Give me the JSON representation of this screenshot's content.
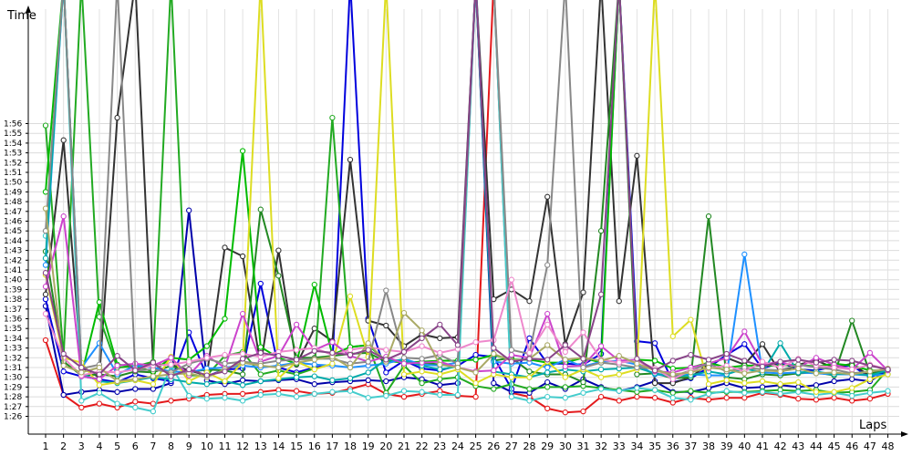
{
  "chart_data": {
    "type": "line",
    "xlabel": "Laps",
    "ylabel": "Time",
    "x": [
      1,
      2,
      3,
      4,
      5,
      6,
      7,
      8,
      9,
      10,
      11,
      12,
      13,
      14,
      15,
      16,
      17,
      18,
      19,
      20,
      21,
      22,
      23,
      24,
      25,
      26,
      27,
      28,
      29,
      30,
      31,
      32,
      33,
      34,
      35,
      36,
      37,
      38,
      39,
      40,
      41,
      42,
      43,
      44,
      45,
      46,
      47,
      48
    ],
    "x_tick_labels": [
      "1",
      "2",
      "3",
      "4",
      "5",
      "6",
      "7",
      "8",
      "9",
      "10",
      "11",
      "12",
      "13",
      "14",
      "15",
      "16",
      "17",
      "18",
      "19",
      "20",
      "21",
      "22",
      "23",
      "24",
      "25",
      "26",
      "27",
      "28",
      "29",
      "30",
      "31",
      "32",
      "33",
      "34",
      "35",
      "36",
      "37",
      "38",
      "39",
      "40",
      "41",
      "42",
      "43",
      "44",
      "45",
      "46",
      "47",
      "48"
    ],
    "y_tick_labels": [
      "1:26",
      "1:27",
      "1:28",
      "1:29",
      "1:30",
      "1:31",
      "1:32",
      "1:33",
      "1:34",
      "1:35",
      "1:36",
      "1:37",
      "1:38",
      "1:39",
      "1:40",
      "1:41",
      "1:42",
      "1:43",
      "1:44",
      "1:45",
      "1:46",
      "1:47",
      "1:48",
      "1:49",
      "1:50",
      "1:51",
      "1:52",
      "1:53",
      "1:54",
      "1:55",
      "1:56"
    ],
    "y_unit": "seconds",
    "ylim": [
      85,
      117
    ],
    "grid": true,
    "legend": "none",
    "series": [
      {
        "color": "#e41a1c",
        "values": [
          93.8,
          88.2,
          86.9,
          87.3,
          86.9,
          87.5,
          87.3,
          87.6,
          87.8,
          88.2,
          88.3,
          88.3,
          88.5,
          88.7,
          88.6,
          88.3,
          88.4,
          88.8,
          89.3,
          88.3,
          88.0,
          88.3,
          88.6,
          88.1,
          88.0,
          117,
          88.4,
          88.0,
          86.8,
          86.4,
          86.5,
          88.0,
          87.6,
          88.0,
          87.9,
          87.4,
          87.9,
          87.7,
          87.9,
          87.9,
          88.4,
          88.2,
          87.8,
          87.7,
          87.9,
          87.6,
          87.8,
          88.3
        ]
      },
      {
        "color": "#0000aa",
        "values": [
          97.3,
          88.2,
          88.5,
          88.7,
          88.5,
          88.8,
          88.8,
          89.4,
          107.1,
          89.7,
          89.3,
          89.7,
          89.6,
          89.7,
          89.8,
          89.3,
          89.5,
          89.6,
          89.7,
          89.6,
          90.0,
          89.8,
          89.2,
          89.4,
          117,
          89.4,
          88.5,
          88.4,
          89.5,
          88.8,
          89.8,
          89.0,
          88.6,
          89.0,
          89.6,
          88.5,
          88.5,
          88.9,
          89.4,
          88.9,
          89.0,
          89.2,
          89.0,
          89.2,
          89.6,
          89.8,
          89.6,
          90.7
        ]
      },
      {
        "color": "#0000dd",
        "values": [
          98.0,
          90.6,
          90.1,
          89.8,
          89.5,
          90.3,
          89.9,
          89.6,
          94.6,
          90.1,
          90.8,
          90.9,
          99.6,
          91.0,
          90.5,
          91.0,
          91.3,
          117,
          96.0,
          90.5,
          91.7,
          90.9,
          90.7,
          91.2,
          92.3,
          92.1,
          88.8,
          94.0,
          91.4,
          91.4,
          91.3,
          92.4,
          117,
          93.7,
          93.5,
          89.5,
          89.9,
          91.0,
          92.3,
          93.4,
          90.9,
          91.5,
          90.8,
          90.7,
          91.1,
          91.2,
          90.0,
          90.7
        ]
      },
      {
        "color": "#333333",
        "values": [
          98.5,
          114.3,
          91.0,
          90.0,
          116.6,
          117,
          91.3,
          91.3,
          90.7,
          90.2,
          103.3,
          102.4,
          91.2,
          103.0,
          91.3,
          95.0,
          93.7,
          112.3,
          95.8,
          95.3,
          93.2,
          94.4,
          94.0,
          94.1,
          117,
          98.0,
          99.0,
          97.8,
          108.5,
          93.4,
          98.7,
          117,
          97.8,
          112.7,
          89.4,
          89.4,
          90.0,
          91.4,
          92.0,
          91.3,
          93.4,
          90.5,
          91.3,
          91.7,
          91.0,
          91.4,
          90.1,
          90.8
        ]
      },
      {
        "color": "#22aa22",
        "values": [
          115.8,
          92.1,
          117,
          96.2,
          91.0,
          91.1,
          91.6,
          117,
          90.2,
          90.2,
          92.2,
          92.6,
          90.3,
          90.7,
          90.3,
          90.9,
          116.6,
          93.1,
          93.3,
          88.4,
          91.2,
          89.4,
          89.8,
          90.0,
          89.1,
          88.8,
          89.3,
          88.8,
          89.0,
          89.0,
          89.1,
          88.9,
          88.7,
          88.5,
          88.7,
          88.4,
          88.6,
          88.4,
          88.5,
          88.5,
          88.6,
          88.7,
          88.6,
          88.7,
          88.4,
          88.5,
          88.7,
          90.8
        ]
      },
      {
        "color": "#228822",
        "values": [
          102.9,
          91.6,
          90.2,
          90.3,
          90.1,
          90.6,
          90.5,
          91.2,
          90.5,
          90.8,
          90.7,
          90.3,
          107.2,
          100.4,
          92.0,
          92.0,
          92.2,
          92.4,
          92.5,
          91.6,
          91.6,
          91.5,
          91.3,
          91.1,
          117,
          91.7,
          92.0,
          90.6,
          90.3,
          90.3,
          89.5,
          105.0,
          117,
          90.3,
          90.4,
          89.9,
          90.0,
          106.5,
          90.0,
          89.8,
          90.3,
          90.2,
          90.4,
          90.5,
          90.2,
          95.8,
          90.4,
          90.7
        ]
      },
      {
        "color": "#00bb00",
        "values": [
          109.0,
          117,
          90.2,
          97.7,
          91.3,
          91.1,
          90.6,
          92.0,
          91.8,
          93.2,
          96.0,
          113.2,
          93.1,
          92.0,
          91.4,
          99.5,
          92.3,
          93.1,
          93.3,
          91.7,
          91.5,
          91.6,
          91.7,
          91.7,
          91.8,
          92.3,
          91.8,
          91.8,
          91.5,
          91.5,
          92.0,
          91.5,
          117,
          91.8,
          91.7,
          90.9,
          91.0,
          91.5,
          91.0,
          91.2,
          91.2,
          91.2,
          91.3,
          91.1,
          91.4,
          91.2,
          90.7,
          90.7
        ]
      },
      {
        "color": "#1e90ff",
        "values": [
          101.5,
          117,
          91.0,
          93.5,
          90.3,
          91.2,
          91.0,
          90.6,
          90.5,
          90.9,
          91.0,
          91.2,
          91.0,
          91.2,
          91.5,
          91.3,
          91.2,
          91.0,
          91.2,
          91.4,
          91.9,
          91.3,
          91.2,
          91.5,
          117,
          91.6,
          91.4,
          91.5,
          91.0,
          91.8,
          91.1,
          91.6,
          91.7,
          91.3,
          90.3,
          90.1,
          90.3,
          90.2,
          90.2,
          102.6,
          90.5,
          90.4,
          90.5,
          90.4,
          90.3,
          90.3,
          90.2,
          90.3
        ]
      },
      {
        "color": "#44cccc",
        "values": [
          104.5,
          117,
          87.6,
          88.4,
          87.3,
          86.9,
          86.5,
          91.2,
          88.1,
          87.8,
          87.9,
          87.6,
          88.2,
          88.3,
          88.0,
          88.3,
          88.5,
          88.6,
          87.9,
          88.1,
          88.6,
          88.5,
          88.2,
          88.2,
          117,
          117,
          88.0,
          87.6,
          88.0,
          87.9,
          88.4,
          88.8,
          88.6,
          88.9,
          88.7,
          87.9,
          87.7,
          88.3,
          88.6,
          88.4,
          88.5,
          88.3,
          88.5,
          88.2,
          88.4,
          88.1,
          88.4,
          88.6
        ]
      },
      {
        "color": "#00aaaa",
        "values": [
          102.2,
          117,
          90.4,
          89.6,
          89.4,
          89.7,
          90.0,
          89.8,
          89.5,
          89.3,
          89.6,
          89.2,
          89.6,
          89.8,
          90.0,
          90.1,
          89.7,
          89.9,
          90.5,
          91.8,
          91.7,
          91.2,
          90.8,
          91.1,
          117,
          90.6,
          90.3,
          90.0,
          90.5,
          90.8,
          90.6,
          90.8,
          90.9,
          91.0,
          90.4,
          90.1,
          90.2,
          90.6,
          90.3,
          90.9,
          90.5,
          93.5,
          90.5,
          90.6,
          90.3,
          90.4,
          90.2,
          90.7
        ]
      },
      {
        "color": "#dddd22",
        "values": [
          100.5,
          92.0,
          91.5,
          89.2,
          89.5,
          89.7,
          89.3,
          92.1,
          89.6,
          90.5,
          89.6,
          91.5,
          117,
          89.9,
          91.6,
          90.8,
          91.4,
          98.3,
          92.1,
          117,
          90.3,
          90.6,
          90.3,
          90.8,
          89.4,
          90.3,
          90.0,
          90.0,
          91.6,
          90.0,
          90.8,
          90.0,
          90.3,
          90.8,
          117,
          94.2,
          95.9,
          89.3,
          89.7,
          89.4,
          89.6,
          89.3,
          89.5,
          88.5,
          88.5,
          88.9,
          89.8,
          90.3
        ]
      },
      {
        "color": "#cc44cc",
        "values": [
          99.3,
          106.5,
          90.1,
          89.8,
          91.2,
          91.4,
          91.2,
          92.0,
          90.2,
          92.2,
          91.0,
          96.5,
          91.6,
          92.2,
          95.4,
          92.8,
          93.6,
          92.2,
          91.6,
          92.1,
          91.4,
          91.5,
          91.6,
          91.0,
          90.6,
          90.7,
          92.3,
          92.0,
          96.5,
          91.1,
          91.2,
          93.2,
          91.7,
          91.8,
          90.6,
          90.5,
          91.0,
          91.4,
          92.0,
          94.7,
          91.3,
          91.6,
          91.0,
          92.0,
          91.3,
          90.8,
          92.5,
          90.7
        ]
      },
      {
        "color": "#888888",
        "values": [
          105.0,
          117,
          90.9,
          91.3,
          117,
          90.7,
          90.8,
          90.5,
          91.4,
          91.9,
          91.4,
          91.6,
          91.4,
          91.7,
          91.8,
          91.9,
          91.9,
          91.4,
          91.6,
          98.9,
          92.0,
          91.9,
          92.3,
          91.4,
          117,
          117,
          92.8,
          92.4,
          101.5,
          117,
          91.0,
          91.5,
          91.3,
          91.0,
          90.9,
          90.1,
          90.7,
          91.4,
          90.6,
          91.0,
          90.8,
          90.7,
          91.3,
          91.0,
          90.8,
          90.4,
          90.6,
          90.8
        ]
      },
      {
        "color": "#ee88cc",
        "values": [
          96.5,
          92.0,
          90.2,
          90.6,
          90.5,
          90.8,
          91.2,
          91.3,
          91.6,
          92.0,
          92.3,
          92.4,
          92.1,
          92.6,
          92.8,
          93.0,
          92.3,
          92.8,
          93.1,
          92.8,
          92.6,
          93.2,
          92.5,
          92.9,
          93.6,
          93.8,
          100.0,
          92.5,
          95.4,
          92.6,
          94.6,
          91.8,
          91.5,
          91.7,
          90.9,
          89.8,
          90.7,
          90.9,
          91.2,
          90.6,
          91.6,
          91.0,
          91.9,
          91.2,
          91.0,
          90.8,
          91.3,
          90.8
        ]
      },
      {
        "color": "#aaaa66",
        "values": [
          107.3,
          91.2,
          90.5,
          91.0,
          89.6,
          89.8,
          90.1,
          90.3,
          90.4,
          90.0,
          90.8,
          91.5,
          91.2,
          91.0,
          91.5,
          91.8,
          92.1,
          91.0,
          93.5,
          91.6,
          96.6,
          94.8,
          91.3,
          91.0,
          90.5,
          92.4,
          91.7,
          91.9,
          93.3,
          91.8,
          92.0,
          91.7,
          92.2,
          91.4,
          90.7,
          90.3,
          90.5,
          91.0,
          90.8,
          90.4,
          90.7,
          90.6,
          90.9,
          90.4,
          90.5,
          90.3,
          90.6,
          90.9
        ]
      },
      {
        "color": "#884488",
        "values": [
          100.7,
          92.4,
          91.0,
          90.3,
          92.2,
          90.7,
          91.5,
          90.1,
          90.8,
          90.2,
          90.6,
          91.9,
          92.5,
          92.2,
          91.8,
          92.7,
          92.5,
          92.3,
          92.8,
          91.8,
          92.6,
          94.0,
          95.4,
          93.3,
          117,
          93.0,
          91.6,
          91.9,
          91.8,
          93.3,
          91.9,
          98.5,
          117,
          91.9,
          90.7,
          91.7,
          92.3,
          91.8,
          92.4,
          91.7,
          91.1,
          91.6,
          91.8,
          91.5,
          91.8,
          91.7,
          91.2,
          90.8
        ]
      }
    ]
  }
}
